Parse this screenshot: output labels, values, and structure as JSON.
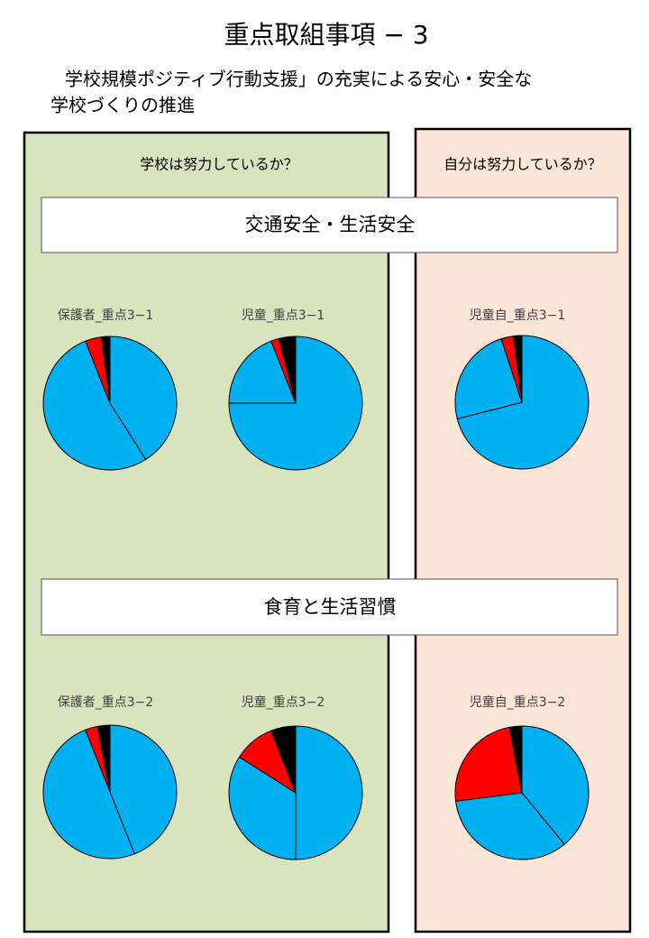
{
  "page": {
    "title": "重点取組事項 − 3",
    "subtitle": [
      "学校規模ポジティブ行動支援」の充実による安心・安全な",
      "学校づくりの推進"
    ],
    "panels": [
      "学校は努力しているか？",
      "自分は努力しているか？"
    ],
    "sections": [
      "交通安全・生活安全",
      "食育と生活習慣"
    ]
  },
  "chart_data": [
    {
      "type": "pie",
      "title": "保護者_重点3−1",
      "values": [
        41,
        53,
        4,
        2
      ],
      "colors": [
        "#00b0f0",
        "#00b0f0",
        "#ff0000",
        "#000000"
      ]
    },
    {
      "type": "pie",
      "title": "児童_重点3−1",
      "values": [
        75,
        19,
        2,
        4
      ],
      "colors": [
        "#00b0f0",
        "#00b0f0",
        "#ff0000",
        "#000000"
      ]
    },
    {
      "type": "pie",
      "title": "児童自_重点3−1",
      "values": [
        71,
        24,
        3,
        2
      ],
      "colors": [
        "#00b0f0",
        "#00b0f0",
        "#ff0000",
        "#000000"
      ]
    },
    {
      "type": "pie",
      "title": "保護者_重点3−2",
      "values": [
        44,
        50,
        3,
        3
      ],
      "colors": [
        "#00b0f0",
        "#00b0f0",
        "#ff0000",
        "#000000"
      ]
    },
    {
      "type": "pie",
      "title": "児童_重点3−2",
      "values": [
        50,
        34,
        10,
        6
      ],
      "colors": [
        "#00b0f0",
        "#00b0f0",
        "#ff0000",
        "#000000"
      ]
    },
    {
      "type": "pie",
      "title": "児童自_重点3−2",
      "values": [
        39,
        34,
        24,
        3
      ],
      "colors": [
        "#00b0f0",
        "#00b0f0",
        "#ff0000",
        "#000000"
      ]
    }
  ]
}
